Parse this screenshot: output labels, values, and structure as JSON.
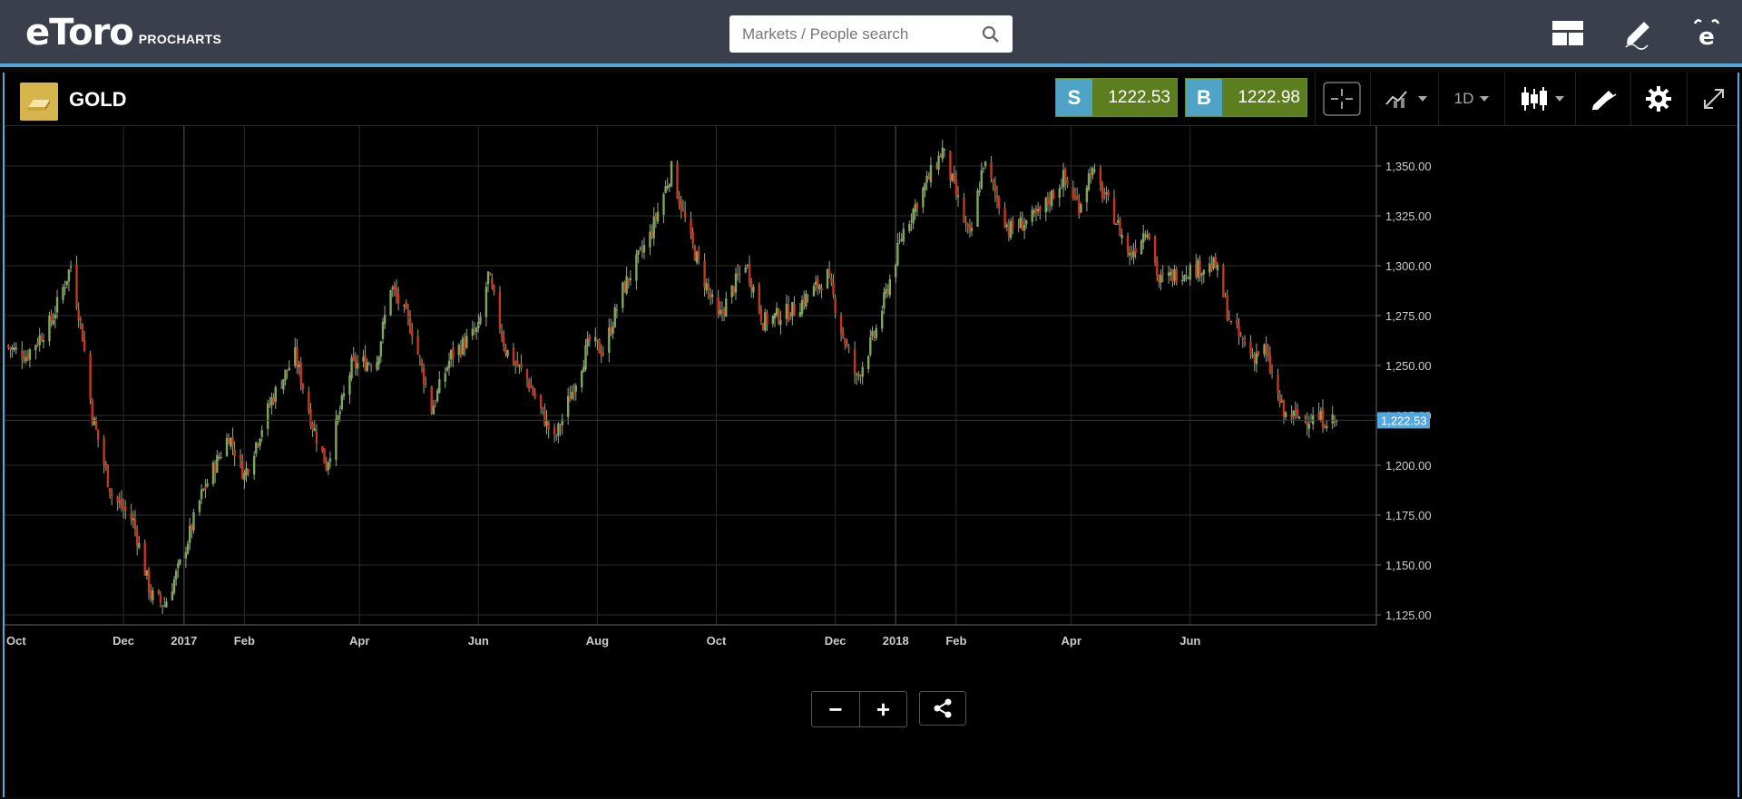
{
  "header": {
    "logo_text": "eToro",
    "logo_sub": "PROCHARTS",
    "search_placeholder": "Markets / People search",
    "icons": [
      "layout-icon",
      "pencil-icon",
      "etoro-profile-icon"
    ]
  },
  "instrument": {
    "name": "GOLD",
    "icon": "gold-bar-icon",
    "sell_label": "S",
    "sell_price": "1222.53",
    "buy_label": "B",
    "buy_price": "1222.98"
  },
  "toolbar": {
    "crosshair_icon": "crosshair-icon",
    "indicators_icon": "indicators-icon",
    "timeframe": "1D",
    "chart_type_icon": "candlestick-icon",
    "drawing_icon": "drawing-tools-icon",
    "settings_icon": "gear-icon",
    "fullscreen_icon": "expand-icon"
  },
  "controls": {
    "zoom_out": "−",
    "zoom_in": "+",
    "share_icon": "share-icon"
  },
  "colors": {
    "up": "#7fa85a",
    "down": "#c6371e",
    "accent": "#55a8dd",
    "grid": "#2b2b2b"
  },
  "chart_data": {
    "type": "candlestick",
    "title": "",
    "xlabel": "",
    "ylabel": "",
    "ylim": [
      1120,
      1370
    ],
    "x_ticks": [
      "Oct",
      "Dec",
      "2017",
      "Feb",
      "Apr",
      "Jun",
      "Aug",
      "Oct",
      "Dec",
      "2018",
      "Feb",
      "Apr",
      "Jun"
    ],
    "y_ticks": [
      "1,125.00",
      "1,150.00",
      "1,175.00",
      "1,200.00",
      "1,225.00",
      "1,250.00",
      "1,275.00",
      "1,300.00",
      "1,325.00",
      "1,350.00"
    ],
    "y_tick_values": [
      1125,
      1150,
      1175,
      1200,
      1225,
      1250,
      1275,
      1300,
      1325,
      1350
    ],
    "last_price_label": "1,222.53",
    "last_price": 1222.53,
    "date_range": [
      "2016-10-01",
      "2018-08-15"
    ],
    "series": [
      {
        "name": "",
        "close_path": [
          [
            "2016-10-01",
            1260
          ],
          [
            "2016-10-12",
            1255
          ],
          [
            "2016-10-25",
            1272
          ],
          [
            "2016-11-04",
            1300
          ],
          [
            "2016-11-10",
            1265
          ],
          [
            "2016-11-15",
            1225
          ],
          [
            "2016-11-25",
            1185
          ],
          [
            "2016-12-06",
            1172
          ],
          [
            "2016-12-15",
            1135
          ],
          [
            "2016-12-22",
            1130
          ],
          [
            "2016-12-30",
            1150
          ],
          [
            "2017-01-10",
            1185
          ],
          [
            "2017-01-24",
            1215
          ],
          [
            "2017-02-01",
            1195
          ],
          [
            "2017-02-15",
            1233
          ],
          [
            "2017-02-27",
            1255
          ],
          [
            "2017-03-08",
            1220
          ],
          [
            "2017-03-15",
            1200
          ],
          [
            "2017-03-28",
            1250
          ],
          [
            "2017-04-10",
            1253
          ],
          [
            "2017-04-17",
            1290
          ],
          [
            "2017-04-28",
            1268
          ],
          [
            "2017-05-08",
            1228
          ],
          [
            "2017-05-18",
            1255
          ],
          [
            "2017-06-01",
            1268
          ],
          [
            "2017-06-06",
            1295
          ],
          [
            "2017-06-15",
            1258
          ],
          [
            "2017-06-26",
            1243
          ],
          [
            "2017-07-10",
            1212
          ],
          [
            "2017-07-20",
            1240
          ],
          [
            "2017-07-28",
            1262
          ],
          [
            "2017-08-04",
            1257
          ],
          [
            "2017-08-14",
            1288
          ],
          [
            "2017-08-28",
            1315
          ],
          [
            "2017-09-08",
            1348
          ],
          [
            "2017-09-18",
            1312
          ],
          [
            "2017-10-02",
            1273
          ],
          [
            "2017-10-16",
            1302
          ],
          [
            "2017-10-25",
            1272
          ],
          [
            "2017-11-10",
            1278
          ],
          [
            "2017-11-27",
            1295
          ],
          [
            "2017-12-05",
            1265
          ],
          [
            "2017-12-12",
            1243
          ],
          [
            "2017-12-22",
            1268
          ],
          [
            "2018-01-05",
            1318
          ],
          [
            "2018-01-15",
            1338
          ],
          [
            "2018-01-25",
            1358
          ],
          [
            "2018-02-08",
            1313
          ],
          [
            "2018-02-15",
            1352
          ],
          [
            "2018-02-28",
            1318
          ],
          [
            "2018-03-15",
            1325
          ],
          [
            "2018-03-28",
            1344
          ],
          [
            "2018-04-05",
            1330
          ],
          [
            "2018-04-11",
            1348
          ],
          [
            "2018-04-23",
            1325
          ],
          [
            "2018-05-01",
            1305
          ],
          [
            "2018-05-10",
            1320
          ],
          [
            "2018-05-16",
            1292
          ],
          [
            "2018-05-30",
            1298
          ],
          [
            "2018-06-14",
            1300
          ],
          [
            "2018-06-22",
            1270
          ],
          [
            "2018-07-03",
            1255
          ],
          [
            "2018-07-09",
            1258
          ],
          [
            "2018-07-19",
            1225
          ],
          [
            "2018-08-15",
            1222.5
          ]
        ]
      }
    ]
  }
}
